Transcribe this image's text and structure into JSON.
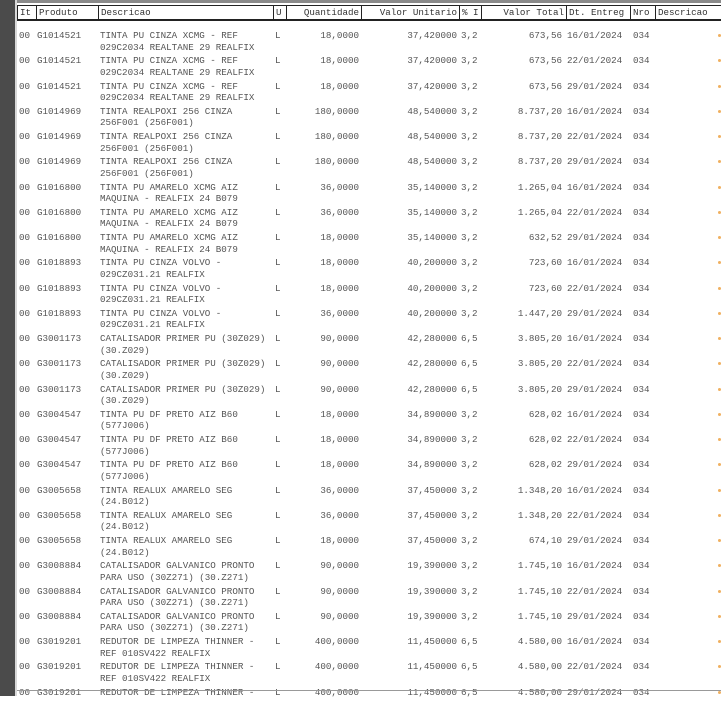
{
  "headers": [
    "It",
    "Produto",
    "Descricao",
    "U",
    "Quantidade",
    "Valor Unitario",
    "% I",
    "Valor Total",
    "Dt. Entreg",
    "Nro",
    "Descricao"
  ],
  "accent_color": "#f0b060",
  "rows": [
    {
      "it": "00",
      "produto": "G1014521",
      "desc1": "TINTA PU CINZA XCMG - REF",
      "desc2": "029C2034 REALTANE 29 REALFIX",
      "u": "L",
      "qtd": "18,0000",
      "vunit": "37,420000",
      "pi": "3,2",
      "vtotal": "673,56",
      "dt": "16/01/2024",
      "nro": "034"
    },
    {
      "it": "00",
      "produto": "G1014521",
      "desc1": "TINTA PU CINZA XCMG - REF",
      "desc2": "029C2034 REALTANE 29 REALFIX",
      "u": "L",
      "qtd": "18,0000",
      "vunit": "37,420000",
      "pi": "3,2",
      "vtotal": "673,56",
      "dt": "22/01/2024",
      "nro": "034"
    },
    {
      "it": "00",
      "produto": "G1014521",
      "desc1": "TINTA PU CINZA XCMG - REF",
      "desc2": "029C2034 REALTANE 29 REALFIX",
      "u": "L",
      "qtd": "18,0000",
      "vunit": "37,420000",
      "pi": "3,2",
      "vtotal": "673,56",
      "dt": "29/01/2024",
      "nro": "034"
    },
    {
      "it": "00",
      "produto": "G1014969",
      "desc1": "TINTA REALPOXI 256 CINZA",
      "desc2": "256F001 (256F001)",
      "u": "L",
      "qtd": "180,0000",
      "vunit": "48,540000",
      "pi": "3,2",
      "vtotal": "8.737,20",
      "dt": "16/01/2024",
      "nro": "034"
    },
    {
      "it": "00",
      "produto": "G1014969",
      "desc1": "TINTA REALPOXI 256 CINZA",
      "desc2": "256F001 (256F001)",
      "u": "L",
      "qtd": "180,0000",
      "vunit": "48,540000",
      "pi": "3,2",
      "vtotal": "8.737,20",
      "dt": "22/01/2024",
      "nro": "034"
    },
    {
      "it": "00",
      "produto": "G1014969",
      "desc1": "TINTA REALPOXI 256 CINZA",
      "desc2": "256F001 (256F001)",
      "u": "L",
      "qtd": "180,0000",
      "vunit": "48,540000",
      "pi": "3,2",
      "vtotal": "8.737,20",
      "dt": "29/01/2024",
      "nro": "034"
    },
    {
      "it": "00",
      "produto": "G1016800",
      "desc1": "TINTA PU AMARELO XCMG AIZ",
      "desc2": "MAQUINA - REALFIX 24 B079",
      "u": "L",
      "qtd": "36,0000",
      "vunit": "35,140000",
      "pi": "3,2",
      "vtotal": "1.265,04",
      "dt": "16/01/2024",
      "nro": "034"
    },
    {
      "it": "00",
      "produto": "G1016800",
      "desc1": "TINTA PU AMARELO XCMG AIZ",
      "desc2": "MAQUINA - REALFIX 24 B079",
      "u": "L",
      "qtd": "36,0000",
      "vunit": "35,140000",
      "pi": "3,2",
      "vtotal": "1.265,04",
      "dt": "22/01/2024",
      "nro": "034"
    },
    {
      "it": "00",
      "produto": "G1016800",
      "desc1": "TINTA PU AMARELO XCMG AIZ",
      "desc2": "MAQUINA - REALFIX 24 B079",
      "u": "L",
      "qtd": "18,0000",
      "vunit": "35,140000",
      "pi": "3,2",
      "vtotal": "632,52",
      "dt": "29/01/2024",
      "nro": "034"
    },
    {
      "it": "00",
      "produto": "G1018893",
      "desc1": "TINTA PU CINZA VOLVO -",
      "desc2": "029CZ031.21 REALFIX",
      "u": "L",
      "qtd": "18,0000",
      "vunit": "40,200000",
      "pi": "3,2",
      "vtotal": "723,60",
      "dt": "16/01/2024",
      "nro": "034"
    },
    {
      "it": "00",
      "produto": "G1018893",
      "desc1": "TINTA PU CINZA VOLVO -",
      "desc2": "029CZ031.21 REALFIX",
      "u": "L",
      "qtd": "18,0000",
      "vunit": "40,200000",
      "pi": "3,2",
      "vtotal": "723,60",
      "dt": "22/01/2024",
      "nro": "034"
    },
    {
      "it": "00",
      "produto": "G1018893",
      "desc1": "TINTA PU CINZA VOLVO -",
      "desc2": "029CZ031.21 REALFIX",
      "u": "L",
      "qtd": "36,0000",
      "vunit": "40,200000",
      "pi": "3,2",
      "vtotal": "1.447,20",
      "dt": "29/01/2024",
      "nro": "034"
    },
    {
      "it": "00",
      "produto": "G3001173",
      "desc1": "CATALISADOR PRIMER PU (30Z029)",
      "desc2": "(30.Z029)",
      "u": "L",
      "qtd": "90,0000",
      "vunit": "42,280000",
      "pi": "6,5",
      "vtotal": "3.805,20",
      "dt": "16/01/2024",
      "nro": "034"
    },
    {
      "it": "00",
      "produto": "G3001173",
      "desc1": "CATALISADOR PRIMER PU (30Z029)",
      "desc2": "(30.Z029)",
      "u": "L",
      "qtd": "90,0000",
      "vunit": "42,280000",
      "pi": "6,5",
      "vtotal": "3.805,20",
      "dt": "22/01/2024",
      "nro": "034"
    },
    {
      "it": "00",
      "produto": "G3001173",
      "desc1": "CATALISADOR PRIMER PU (30Z029)",
      "desc2": "(30.Z029)",
      "u": "L",
      "qtd": "90,0000",
      "vunit": "42,280000",
      "pi": "6,5",
      "vtotal": "3.805,20",
      "dt": "29/01/2024",
      "nro": "034"
    },
    {
      "it": "00",
      "produto": "G3004547",
      "desc1": "TINTA PU DF PRETO AIZ B60",
      "desc2": "(577J006)",
      "u": "L",
      "qtd": "18,0000",
      "vunit": "34,890000",
      "pi": "3,2",
      "vtotal": "628,02",
      "dt": "16/01/2024",
      "nro": "034"
    },
    {
      "it": "00",
      "produto": "G3004547",
      "desc1": "TINTA PU DF PRETO AIZ B60",
      "desc2": "(577J006)",
      "u": "L",
      "qtd": "18,0000",
      "vunit": "34,890000",
      "pi": "3,2",
      "vtotal": "628,02",
      "dt": "22/01/2024",
      "nro": "034"
    },
    {
      "it": "00",
      "produto": "G3004547",
      "desc1": "TINTA PU DF PRETO AIZ B60",
      "desc2": "(577J006)",
      "u": "L",
      "qtd": "18,0000",
      "vunit": "34,890000",
      "pi": "3,2",
      "vtotal": "628,02",
      "dt": "29/01/2024",
      "nro": "034"
    },
    {
      "it": "00",
      "produto": "G3005658",
      "desc1": "TINTA REALUX AMARELO SEG",
      "desc2": "(24.B012)",
      "u": "L",
      "qtd": "36,0000",
      "vunit": "37,450000",
      "pi": "3,2",
      "vtotal": "1.348,20",
      "dt": "16/01/2024",
      "nro": "034"
    },
    {
      "it": "00",
      "produto": "G3005658",
      "desc1": "TINTA REALUX AMARELO SEG",
      "desc2": "(24.B012)",
      "u": "L",
      "qtd": "36,0000",
      "vunit": "37,450000",
      "pi": "3,2",
      "vtotal": "1.348,20",
      "dt": "22/01/2024",
      "nro": "034"
    },
    {
      "it": "00",
      "produto": "G3005658",
      "desc1": "TINTA REALUX AMARELO SEG",
      "desc2": "(24.B012)",
      "u": "L",
      "qtd": "18,0000",
      "vunit": "37,450000",
      "pi": "3,2",
      "vtotal": "674,10",
      "dt": "29/01/2024",
      "nro": "034"
    },
    {
      "it": "00",
      "produto": "G3008884",
      "desc1": "CATALISADOR GALVANICO PRONTO",
      "desc2": "PARA USO (30Z271) (30.Z271)",
      "u": "L",
      "qtd": "90,0000",
      "vunit": "19,390000",
      "pi": "3,2",
      "vtotal": "1.745,10",
      "dt": "16/01/2024",
      "nro": "034"
    },
    {
      "it": "00",
      "produto": "G3008884",
      "desc1": "CATALISADOR GALVANICO PRONTO",
      "desc2": "PARA USO (30Z271) (30.Z271)",
      "u": "L",
      "qtd": "90,0000",
      "vunit": "19,390000",
      "pi": "3,2",
      "vtotal": "1.745,10",
      "dt": "22/01/2024",
      "nro": "034"
    },
    {
      "it": "00",
      "produto": "G3008884",
      "desc1": "CATALISADOR GALVANICO PRONTO",
      "desc2": "PARA USO (30Z271) (30.Z271)",
      "u": "L",
      "qtd": "90,0000",
      "vunit": "19,390000",
      "pi": "3,2",
      "vtotal": "1.745,10",
      "dt": "29/01/2024",
      "nro": "034"
    },
    {
      "it": "00",
      "produto": "G3019201",
      "desc1": "REDUTOR DE LIMPEZA THINNER -",
      "desc2": "REF 010SV422 REALFIX",
      "u": "L",
      "qtd": "400,0000",
      "vunit": "11,450000",
      "pi": "6,5",
      "vtotal": "4.580,00",
      "dt": "16/01/2024",
      "nro": "034"
    },
    {
      "it": "00",
      "produto": "G3019201",
      "desc1": "REDUTOR DE LIMPEZA THINNER -",
      "desc2": "REF 010SV422 REALFIX",
      "u": "L",
      "qtd": "400,0000",
      "vunit": "11,450000",
      "pi": "6,5",
      "vtotal": "4.580,00",
      "dt": "22/01/2024",
      "nro": "034"
    },
    {
      "it": "00",
      "produto": "G3019201",
      "desc1": "REDUTOR DE LIMPEZA THINNER -",
      "desc2": "",
      "u": "L",
      "qtd": "400,0000",
      "vunit": "11,450000",
      "pi": "6,5",
      "vtotal": "4.580,00",
      "dt": "29/01/2024",
      "nro": "034"
    }
  ]
}
